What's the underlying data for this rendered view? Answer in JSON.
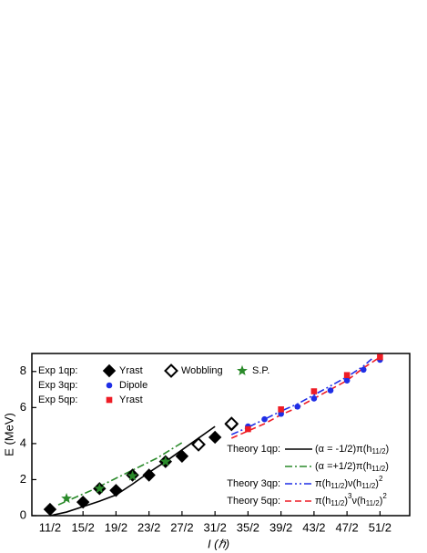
{
  "chart_data": {
    "type": "scatter-line",
    "xlabel": "I (ℏ)",
    "ylabel": "E (MeV)",
    "xlim": [
      4.4,
      27.3
    ],
    "ylim": [
      0,
      9
    ],
    "xticks": [
      {
        "value": 5.5,
        "label": "11/2"
      },
      {
        "value": 7.5,
        "label": "15/2"
      },
      {
        "value": 9.5,
        "label": "19/2"
      },
      {
        "value": 11.5,
        "label": "23/2"
      },
      {
        "value": 13.5,
        "label": "27/2"
      },
      {
        "value": 15.5,
        "label": "31/2"
      },
      {
        "value": 17.5,
        "label": "35/2"
      },
      {
        "value": 19.5,
        "label": "39/2"
      },
      {
        "value": 21.5,
        "label": "43/2"
      },
      {
        "value": 23.5,
        "label": "47/2"
      },
      {
        "value": 25.5,
        "label": "51/2"
      }
    ],
    "yticks": [
      0,
      2,
      4,
      6,
      8
    ],
    "exp_groups": [
      {
        "label": "Exp 1qp:",
        "series": [
          {
            "name": "Yrast",
            "marker": "diamond",
            "color": "#000000",
            "x": [
              5.5,
              7.5,
              8.5,
              9.5,
              10.5,
              11.5,
              12.5,
              13.5,
              15.5,
              16.5
            ],
            "values": [
              0.35,
              0.75,
              1.5,
              1.4,
              2.25,
              2.25,
              3.0,
              3.3,
              4.35,
              5.05
            ]
          },
          {
            "name": "Wobbling",
            "marker": "open-diamond",
            "color": "#000000",
            "x": [
              14.5,
              16.5
            ],
            "values": [
              3.95,
              5.1
            ]
          },
          {
            "name": "S.P.",
            "marker": "star",
            "color": "#2a8a2a",
            "x": [
              6.5,
              8.5,
              10.5,
              12.5
            ],
            "values": [
              0.95,
              1.5,
              2.2,
              3.0
            ]
          }
        ]
      },
      {
        "label": "Exp 3qp:",
        "series": [
          {
            "name": "Dipole",
            "marker": "circle",
            "color": "#1f2ee6",
            "x": [
              17.5,
              18.5,
              19.5,
              20.5,
              21.5,
              22.5,
              23.5,
              24.5,
              25.5
            ],
            "values": [
              4.95,
              5.35,
              5.65,
              6.05,
              6.5,
              6.95,
              7.5,
              8.1,
              8.65
            ]
          }
        ]
      },
      {
        "label": "Exp 5qp:",
        "series": [
          {
            "name": "Yrast",
            "marker": "square",
            "color": "#ee1c25",
            "x": [
              17.5,
              19.5,
              21.5,
              23.5,
              25.5
            ],
            "values": [
              4.8,
              5.9,
              6.9,
              7.8,
              8.8
            ]
          }
        ]
      }
    ],
    "theory_groups": [
      {
        "label": "Theory 1qp:",
        "series": [
          {
            "label_parts": [
              {
                "text": "(α = -1/2)π(h"
              },
              {
                "sub": "11/2"
              },
              {
                "text": ")"
              }
            ],
            "color": "#000000",
            "dash": "none",
            "x": [
              5.5,
              6.5,
              7.5,
              8.5,
              9.5,
              10.5,
              11.5,
              12.5,
              13.5,
              14.5,
              15.5
            ],
            "values": [
              0,
              0.2,
              0.5,
              0.8,
              1.15,
              1.75,
              2.4,
              3.0,
              3.65,
              4.3,
              4.95
            ]
          },
          {
            "label_parts": [
              {
                "text": "(α =+1/2)π(h"
              },
              {
                "sub": "11/2"
              },
              {
                "text": ")"
              }
            ],
            "color": "#2a8a2a",
            "dash": "8 3 2 3",
            "x": [
              6,
              8,
              10,
              12,
              13.5
            ],
            "values": [
              0.6,
              1.4,
              2.3,
              3.2,
              4.05
            ]
          }
        ]
      },
      {
        "label": "Theory 3qp:",
        "series": [
          {
            "label_parts": [
              {
                "text": "π(h"
              },
              {
                "sub": "11/2"
              },
              {
                "text": ")ν(h"
              },
              {
                "sub": "11/2"
              },
              {
                "text": ")"
              },
              {
                "sup": "2"
              }
            ],
            "color": "#1f2ee6",
            "dash": "8 3 2 3 2 3",
            "x": [
              16.5,
              17.5,
              18.5,
              19.5,
              20.5,
              21.5,
              22.5,
              23.5,
              24.5,
              25
            ],
            "values": [
              4.5,
              4.9,
              5.35,
              5.8,
              6.2,
              6.7,
              7.2,
              7.7,
              8.3,
              8.7
            ]
          }
        ]
      },
      {
        "label": "Theory 5qp:",
        "series": [
          {
            "label_parts": [
              {
                "text": "π(h"
              },
              {
                "sub": "11/2"
              },
              {
                "text": ")"
              },
              {
                "sup": "3"
              },
              {
                "text": "ν(h"
              },
              {
                "sub": "11/2"
              },
              {
                "text": ")"
              },
              {
                "sup": "2"
              }
            ],
            "color": "#ee1c25",
            "dash": "7 4",
            "x": [
              16.5,
              17.5,
              18.5,
              19.5,
              20.5,
              21.5,
              22.5,
              23.5,
              24.5,
              25.5
            ],
            "values": [
              4.3,
              4.7,
              5.1,
              5.6,
              6.0,
              6.5,
              7.0,
              7.5,
              8.2,
              8.8
            ]
          }
        ]
      }
    ]
  }
}
